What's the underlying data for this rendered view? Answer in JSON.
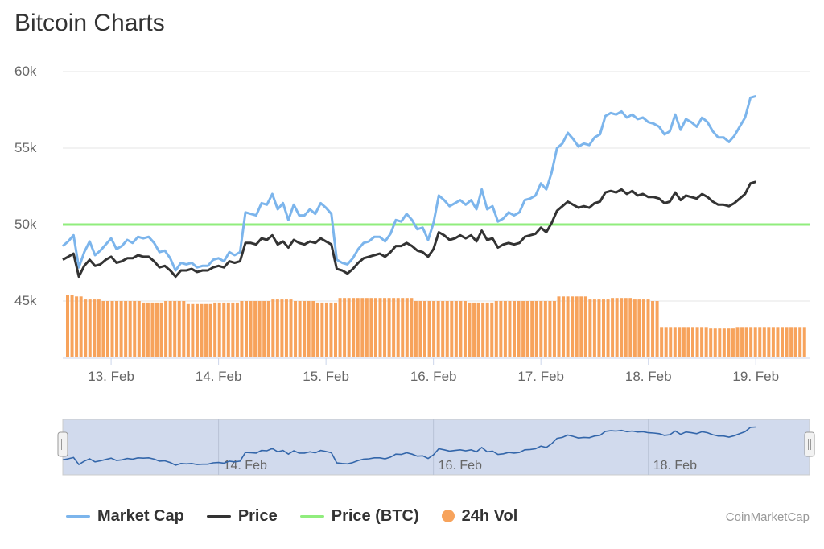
{
  "title": "Bitcoin Charts",
  "credits": "CoinMarketCap",
  "legend": [
    {
      "name": "Market Cap",
      "color": "#7cb5ec",
      "kind": "line"
    },
    {
      "name": "Price",
      "color": "#333333",
      "kind": "line"
    },
    {
      "name": "Price (BTC)",
      "color": "#90ed7d",
      "kind": "line"
    },
    {
      "name": "24h Vol",
      "color": "#f7a35c",
      "kind": "dot"
    }
  ],
  "chart_data": {
    "type": "line",
    "title": "Bitcoin Charts",
    "y_ticks": [
      "60k",
      "55k",
      "50k",
      "45k"
    ],
    "ylim": [
      43000,
      61000
    ],
    "x_ticks": [
      "13. Feb",
      "14. Feb",
      "15. Feb",
      "16. Feb",
      "17. Feb",
      "18. Feb",
      "19. Feb"
    ],
    "xlim": [
      12.55,
      19.5
    ],
    "navigator_labels": [
      "14. Feb",
      "16. Feb",
      "18. Feb"
    ],
    "grid": true,
    "legend_position": "bottom",
    "series": [
      {
        "name": "Market Cap",
        "color": "#7cb5ec",
        "points": [
          [
            12.55,
            48600
          ],
          [
            12.6,
            48900
          ],
          [
            12.65,
            49300
          ],
          [
            12.7,
            47200
          ],
          [
            12.75,
            48200
          ],
          [
            12.8,
            48900
          ],
          [
            12.85,
            48000
          ],
          [
            12.9,
            48300
          ],
          [
            12.95,
            48700
          ],
          [
            13.0,
            49100
          ],
          [
            13.05,
            48400
          ],
          [
            13.1,
            48600
          ],
          [
            13.15,
            49000
          ],
          [
            13.2,
            48800
          ],
          [
            13.25,
            49200
          ],
          [
            13.3,
            49100
          ],
          [
            13.35,
            49200
          ],
          [
            13.4,
            48800
          ],
          [
            13.45,
            48200
          ],
          [
            13.5,
            48300
          ],
          [
            13.55,
            47800
          ],
          [
            13.6,
            47000
          ],
          [
            13.65,
            47500
          ],
          [
            13.7,
            47400
          ],
          [
            13.75,
            47500
          ],
          [
            13.8,
            47200
          ],
          [
            13.85,
            47300
          ],
          [
            13.9,
            47300
          ],
          [
            13.95,
            47700
          ],
          [
            14.0,
            47800
          ],
          [
            14.05,
            47600
          ],
          [
            14.1,
            48200
          ],
          [
            14.15,
            48000
          ],
          [
            14.2,
            48200
          ],
          [
            14.25,
            50800
          ],
          [
            14.3,
            50700
          ],
          [
            14.35,
            50600
          ],
          [
            14.4,
            51400
          ],
          [
            14.45,
            51300
          ],
          [
            14.5,
            52000
          ],
          [
            14.55,
            51000
          ],
          [
            14.6,
            51400
          ],
          [
            14.65,
            50300
          ],
          [
            14.7,
            51300
          ],
          [
            14.75,
            50600
          ],
          [
            14.8,
            50600
          ],
          [
            14.85,
            51000
          ],
          [
            14.9,
            50700
          ],
          [
            14.95,
            51400
          ],
          [
            15.0,
            51100
          ],
          [
            15.05,
            50700
          ],
          [
            15.1,
            47700
          ],
          [
            15.15,
            47500
          ],
          [
            15.2,
            47400
          ],
          [
            15.25,
            47800
          ],
          [
            15.3,
            48400
          ],
          [
            15.35,
            48800
          ],
          [
            15.4,
            48900
          ],
          [
            15.45,
            49200
          ],
          [
            15.5,
            49200
          ],
          [
            15.55,
            48900
          ],
          [
            15.6,
            49400
          ],
          [
            15.65,
            50300
          ],
          [
            15.7,
            50200
          ],
          [
            15.75,
            50700
          ],
          [
            15.8,
            50300
          ],
          [
            15.85,
            49700
          ],
          [
            15.9,
            49800
          ],
          [
            15.95,
            49000
          ],
          [
            16.0,
            50100
          ],
          [
            16.05,
            51900
          ],
          [
            16.1,
            51600
          ],
          [
            16.15,
            51200
          ],
          [
            16.2,
            51400
          ],
          [
            16.25,
            51600
          ],
          [
            16.3,
            51300
          ],
          [
            16.35,
            51600
          ],
          [
            16.4,
            51000
          ],
          [
            16.45,
            52300
          ],
          [
            16.5,
            51000
          ],
          [
            16.55,
            51200
          ],
          [
            16.6,
            50200
          ],
          [
            16.65,
            50400
          ],
          [
            16.7,
            50800
          ],
          [
            16.75,
            50600
          ],
          [
            16.8,
            50800
          ],
          [
            16.85,
            51600
          ],
          [
            16.9,
            51700
          ],
          [
            16.95,
            51900
          ],
          [
            17.0,
            52700
          ],
          [
            17.05,
            52300
          ],
          [
            17.1,
            53400
          ],
          [
            17.15,
            55000
          ],
          [
            17.2,
            55300
          ],
          [
            17.25,
            56000
          ],
          [
            17.3,
            55600
          ],
          [
            17.35,
            55100
          ],
          [
            17.4,
            55300
          ],
          [
            17.45,
            55200
          ],
          [
            17.5,
            55700
          ],
          [
            17.55,
            55900
          ],
          [
            17.6,
            57100
          ],
          [
            17.65,
            57300
          ],
          [
            17.7,
            57200
          ],
          [
            17.75,
            57400
          ],
          [
            17.8,
            57000
          ],
          [
            17.85,
            57200
          ],
          [
            17.9,
            56900
          ],
          [
            17.95,
            57000
          ],
          [
            18.0,
            56700
          ],
          [
            18.05,
            56600
          ],
          [
            18.1,
            56400
          ],
          [
            18.15,
            55900
          ],
          [
            18.2,
            56100
          ],
          [
            18.25,
            57200
          ],
          [
            18.3,
            56200
          ],
          [
            18.35,
            56900
          ],
          [
            18.4,
            56700
          ],
          [
            18.45,
            56400
          ],
          [
            18.5,
            57000
          ],
          [
            18.55,
            56700
          ],
          [
            18.6,
            56100
          ],
          [
            18.65,
            55700
          ],
          [
            18.7,
            55700
          ],
          [
            18.75,
            55400
          ],
          [
            18.8,
            55800
          ],
          [
            18.85,
            56400
          ],
          [
            18.9,
            57000
          ],
          [
            18.95,
            58300
          ],
          [
            19.0,
            58400
          ]
        ]
      },
      {
        "name": "Price",
        "color": "#333333",
        "points": [
          [
            12.55,
            47700
          ],
          [
            12.6,
            47900
          ],
          [
            12.65,
            48100
          ],
          [
            12.7,
            46600
          ],
          [
            12.75,
            47300
          ],
          [
            12.8,
            47700
          ],
          [
            12.85,
            47300
          ],
          [
            12.9,
            47400
          ],
          [
            12.95,
            47700
          ],
          [
            13.0,
            47900
          ],
          [
            13.05,
            47500
          ],
          [
            13.1,
            47600
          ],
          [
            13.15,
            47800
          ],
          [
            13.2,
            47800
          ],
          [
            13.25,
            48000
          ],
          [
            13.3,
            47900
          ],
          [
            13.35,
            47900
          ],
          [
            13.4,
            47600
          ],
          [
            13.45,
            47200
          ],
          [
            13.5,
            47300
          ],
          [
            13.55,
            47000
          ],
          [
            13.6,
            46600
          ],
          [
            13.65,
            47000
          ],
          [
            13.7,
            47000
          ],
          [
            13.75,
            47100
          ],
          [
            13.8,
            46900
          ],
          [
            13.85,
            47000
          ],
          [
            13.9,
            47000
          ],
          [
            13.95,
            47200
          ],
          [
            14.0,
            47300
          ],
          [
            14.05,
            47200
          ],
          [
            14.1,
            47600
          ],
          [
            14.15,
            47500
          ],
          [
            14.2,
            47600
          ],
          [
            14.25,
            48800
          ],
          [
            14.3,
            48800
          ],
          [
            14.35,
            48700
          ],
          [
            14.4,
            49100
          ],
          [
            14.45,
            49000
          ],
          [
            14.5,
            49300
          ],
          [
            14.55,
            48700
          ],
          [
            14.6,
            48900
          ],
          [
            14.65,
            48500
          ],
          [
            14.7,
            49000
          ],
          [
            14.75,
            48800
          ],
          [
            14.8,
            48700
          ],
          [
            14.85,
            48900
          ],
          [
            14.9,
            48800
          ],
          [
            14.95,
            49100
          ],
          [
            15.0,
            48900
          ],
          [
            15.05,
            48700
          ],
          [
            15.1,
            47100
          ],
          [
            15.15,
            47000
          ],
          [
            15.2,
            46800
          ],
          [
            15.25,
            47100
          ],
          [
            15.3,
            47500
          ],
          [
            15.35,
            47800
          ],
          [
            15.4,
            47900
          ],
          [
            15.45,
            48000
          ],
          [
            15.5,
            48100
          ],
          [
            15.55,
            47900
          ],
          [
            15.6,
            48200
          ],
          [
            15.65,
            48600
          ],
          [
            15.7,
            48600
          ],
          [
            15.75,
            48800
          ],
          [
            15.8,
            48600
          ],
          [
            15.85,
            48300
          ],
          [
            15.9,
            48200
          ],
          [
            15.95,
            47900
          ],
          [
            16.0,
            48400
          ],
          [
            16.05,
            49500
          ],
          [
            16.1,
            49300
          ],
          [
            16.15,
            49000
          ],
          [
            16.2,
            49100
          ],
          [
            16.25,
            49300
          ],
          [
            16.3,
            49100
          ],
          [
            16.35,
            49300
          ],
          [
            16.4,
            48900
          ],
          [
            16.45,
            49600
          ],
          [
            16.5,
            49000
          ],
          [
            16.55,
            49100
          ],
          [
            16.6,
            48500
          ],
          [
            16.65,
            48700
          ],
          [
            16.7,
            48800
          ],
          [
            16.75,
            48700
          ],
          [
            16.8,
            48800
          ],
          [
            16.85,
            49200
          ],
          [
            16.9,
            49300
          ],
          [
            16.95,
            49400
          ],
          [
            17.0,
            49800
          ],
          [
            17.05,
            49500
          ],
          [
            17.1,
            50100
          ],
          [
            17.15,
            50900
          ],
          [
            17.2,
            51200
          ],
          [
            17.25,
            51500
          ],
          [
            17.3,
            51300
          ],
          [
            17.35,
            51100
          ],
          [
            17.4,
            51200
          ],
          [
            17.45,
            51100
          ],
          [
            17.5,
            51400
          ],
          [
            17.55,
            51500
          ],
          [
            17.6,
            52100
          ],
          [
            17.65,
            52200
          ],
          [
            17.7,
            52100
          ],
          [
            17.75,
            52300
          ],
          [
            17.8,
            52000
          ],
          [
            17.85,
            52200
          ],
          [
            17.9,
            51900
          ],
          [
            17.95,
            52000
          ],
          [
            18.0,
            51800
          ],
          [
            18.05,
            51800
          ],
          [
            18.1,
            51700
          ],
          [
            18.15,
            51400
          ],
          [
            18.2,
            51500
          ],
          [
            18.25,
            52100
          ],
          [
            18.3,
            51600
          ],
          [
            18.35,
            51900
          ],
          [
            18.4,
            51800
          ],
          [
            18.45,
            51700
          ],
          [
            18.5,
            52000
          ],
          [
            18.55,
            51800
          ],
          [
            18.6,
            51500
          ],
          [
            18.65,
            51300
          ],
          [
            18.7,
            51300
          ],
          [
            18.75,
            51200
          ],
          [
            18.8,
            51400
          ],
          [
            18.85,
            51700
          ],
          [
            18.9,
            52000
          ],
          [
            18.95,
            52700
          ],
          [
            19.0,
            52800
          ]
        ]
      },
      {
        "name": "Price (BTC)",
        "color": "#90ed7d",
        "points": [
          [
            12.55,
            50000
          ],
          [
            19.5,
            50000
          ]
        ]
      },
      {
        "name": "24h Vol",
        "color": "#f7a35c",
        "type": "bar",
        "points": [
          [
            12.55,
            45400
          ],
          [
            12.65,
            45300
          ],
          [
            12.75,
            45100
          ],
          [
            12.9,
            45000
          ],
          [
            13.1,
            45000
          ],
          [
            13.3,
            44900
          ],
          [
            13.5,
            45000
          ],
          [
            13.7,
            44800
          ],
          [
            13.95,
            44900
          ],
          [
            14.2,
            45000
          ],
          [
            14.5,
            45100
          ],
          [
            14.7,
            45000
          ],
          [
            14.9,
            44900
          ],
          [
            15.1,
            45200
          ],
          [
            15.35,
            45200
          ],
          [
            15.6,
            45200
          ],
          [
            15.8,
            45000
          ],
          [
            16.05,
            45000
          ],
          [
            16.3,
            44900
          ],
          [
            16.55,
            45000
          ],
          [
            16.8,
            45000
          ],
          [
            17.0,
            45000
          ],
          [
            17.15,
            45300
          ],
          [
            17.3,
            45300
          ],
          [
            17.45,
            45100
          ],
          [
            17.65,
            45200
          ],
          [
            17.85,
            45100
          ],
          [
            18.0,
            45000
          ],
          [
            18.1,
            43300
          ],
          [
            18.3,
            43300
          ],
          [
            18.55,
            43200
          ],
          [
            18.8,
            43300
          ],
          [
            19.05,
            43300
          ],
          [
            19.5,
            43300
          ]
        ]
      }
    ]
  }
}
